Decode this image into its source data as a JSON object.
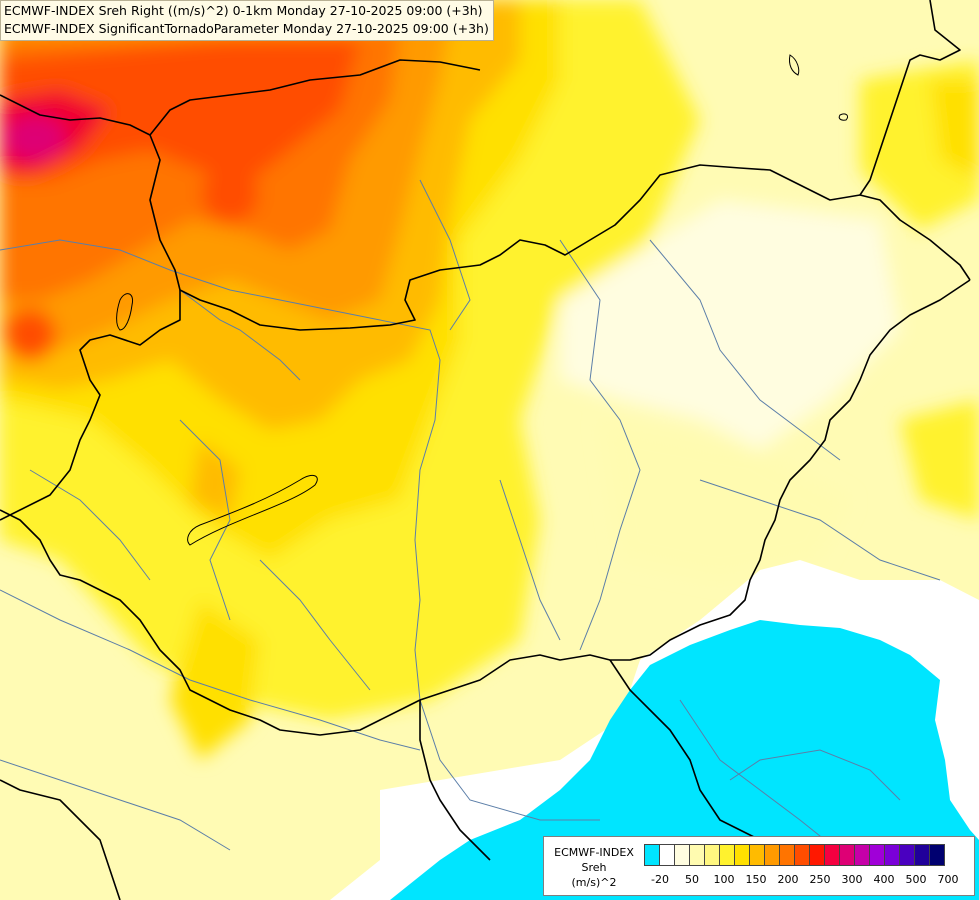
{
  "titles": {
    "line1": "ECMWF-INDEX Sreh Right ((m/s)^2) 0-1km Monday 27-10-2025 09:00 (+3h)",
    "line2": "ECMWF-INDEX SignificantTornadoParameter Monday 27-10-2025 09:00 (+3h)"
  },
  "legend": {
    "model": "ECMWF-INDEX",
    "variable": "Sreh",
    "unit": "(m/s)^2",
    "colors": [
      "#00e5ff",
      "#ffffff",
      "#fffde0",
      "#fffbb0",
      "#fff780",
      "#fff22e",
      "#ffe000",
      "#ffbb00",
      "#ff9a00",
      "#ff7400",
      "#ff4d00",
      "#ff1800",
      "#f50040",
      "#de0075",
      "#c600a8",
      "#a000d8",
      "#7a00d8",
      "#4a00c0",
      "#20009a",
      "#000070"
    ],
    "ticks": [
      "-20",
      "50",
      "100",
      "150",
      "200",
      "250",
      "300",
      "400",
      "500",
      "700"
    ]
  }
}
